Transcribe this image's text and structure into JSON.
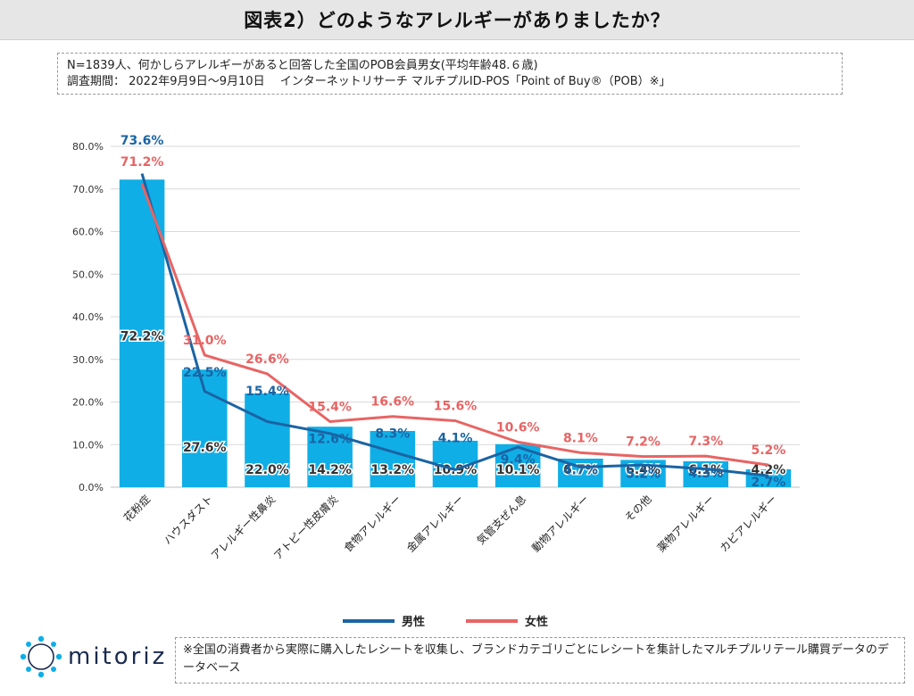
{
  "title": "図表2）どのようなアレルギーがありましたか？",
  "notes": {
    "line1": "N=1839人、何かしらアレルギーがあると回答した全国のPOB会員男女(平均年齢48.６歳)",
    "line2": "調査期間： 2022年9月9日～9月10日　 インターネットリサーチ マルチプルID-POS「Point of Buy®（POB）※」"
  },
  "footer": {
    "text": "※全国の消費者から実際に購入したレシートを収集し、ブランドカテゴリごとにレシートを集計したマルチプルリテール購買データのデータベース"
  },
  "logo": {
    "text": "mitoriz",
    "icon": "network-star-icon"
  },
  "colors": {
    "bar": "#10aee6",
    "male": "#1a64a4",
    "female": "#e86464",
    "grid": "#d9d9d9"
  },
  "chart_data": {
    "type": "bar+line",
    "categories": [
      "花粉症",
      "ハウスダスト",
      "アレルギー性鼻炎",
      "アトピー性皮膚炎",
      "食物アレルギー",
      "金属アレルギー",
      "気管支ぜん息",
      "動物アレルギー",
      "その他",
      "薬物アレルギー",
      "カビアレルギー"
    ],
    "bars": {
      "values": [
        72.2,
        27.6,
        22.0,
        14.2,
        13.2,
        10.9,
        10.1,
        6.7,
        6.4,
        6.1,
        4.2
      ],
      "labels": [
        "72.2%",
        "27.6%",
        "22.0%",
        "14.2%",
        "13.2%",
        "10.9%",
        "10.1%",
        "6.7%",
        "6.4%",
        "6.1%",
        "4.2%"
      ]
    },
    "series": [
      {
        "name": "男性",
        "values": [
          73.6,
          22.5,
          15.4,
          12.6,
          8.3,
          4.1,
          9.4,
          4.7,
          5.2,
          4.3,
          2.7
        ],
        "labels": [
          "73.6%",
          "22.5%",
          "15.4%",
          "12.6%",
          "8.3%",
          "4.1%",
          "9.4%",
          "4.7%",
          "5.2%",
          "4.3%",
          "2.7%"
        ]
      },
      {
        "name": "女性",
        "values": [
          71.2,
          31.0,
          26.6,
          15.4,
          16.6,
          15.6,
          10.6,
          8.1,
          7.2,
          7.3,
          5.2
        ],
        "labels": [
          "71.2%",
          "31.0%",
          "26.6%",
          "15.4%",
          "16.6%",
          "15.6%",
          "10.6%",
          "8.1%",
          "7.2%",
          "7.3%",
          "5.2%"
        ]
      }
    ],
    "yticks": [
      "0.0%",
      "10.0%",
      "20.0%",
      "30.0%",
      "40.0%",
      "50.0%",
      "60.0%",
      "70.0%",
      "80.0%"
    ],
    "ylim": [
      0,
      80
    ],
    "legend": "bottom-center"
  }
}
